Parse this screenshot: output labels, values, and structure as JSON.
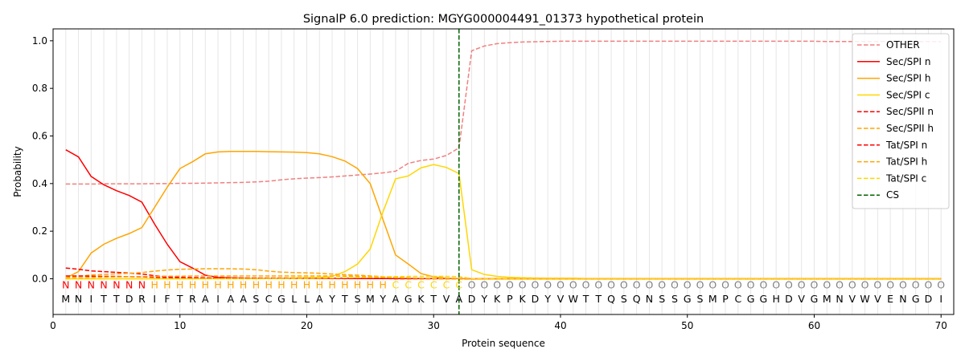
{
  "chart_data": {
    "type": "line",
    "title": "SignalP 6.0 prediction: MGYG000004491_01373 hypothetical protein",
    "xlabel": "Protein sequence",
    "ylabel": "Probability",
    "xlim": [
      0,
      71
    ],
    "ylim": [
      -0.15,
      1.05
    ],
    "x_ticks": [
      0,
      10,
      20,
      30,
      40,
      50,
      60,
      70
    ],
    "y_ticks": [
      0.0,
      0.2,
      0.4,
      0.6,
      0.8,
      1.0
    ],
    "x_tick_labels": [
      "0",
      "10",
      "20",
      "30",
      "40",
      "50",
      "60",
      "70"
    ],
    "y_tick_labels": [
      "0.0",
      "0.2",
      "0.4",
      "0.6",
      "0.8",
      "1.0"
    ],
    "grid": "vertical lines at each residue",
    "legend_position": "top-right",
    "cleavage_site": 32,
    "sequence": [
      "M",
      "N",
      "I",
      "T",
      "T",
      "D",
      "R",
      "I",
      "F",
      "T",
      "R",
      "A",
      "I",
      "A",
      "A",
      "S",
      "C",
      "G",
      "L",
      "L",
      "A",
      "Y",
      "T",
      "S",
      "M",
      "Y",
      "A",
      "G",
      "K",
      "T",
      "V",
      "A",
      "D",
      "Y",
      "K",
      "P",
      "K",
      "D",
      "Y",
      "V",
      "W",
      "T",
      "T",
      "Q",
      "S",
      "Q",
      "N",
      "S",
      "S",
      "G",
      "S",
      "M",
      "P",
      "C",
      "G",
      "G",
      "H",
      "D",
      "V",
      "G",
      "M",
      "N",
      "V",
      "W",
      "V",
      "E",
      "N",
      "G",
      "D",
      "I"
    ],
    "region_labels": [
      "N",
      "N",
      "N",
      "N",
      "N",
      "N",
      "N",
      "H",
      "H",
      "H",
      "H",
      "H",
      "H",
      "H",
      "H",
      "H",
      "H",
      "H",
      "H",
      "H",
      "H",
      "H",
      "H",
      "H",
      "H",
      "H",
      "C",
      "C",
      "C",
      "C",
      "C",
      "C",
      "O",
      "O",
      "O",
      "O",
      "O",
      "O",
      "O",
      "O",
      "O",
      "O",
      "O",
      "O",
      "O",
      "O",
      "O",
      "O",
      "O",
      "O",
      "O",
      "O",
      "O",
      "O",
      "O",
      "O",
      "O",
      "O",
      "O",
      "O",
      "O",
      "O",
      "O",
      "O",
      "O",
      "O",
      "O",
      "O",
      "O",
      "O"
    ],
    "region_colors": {
      "N": "#ff0000",
      "H": "#ffa500",
      "C": "#ffd700",
      "O": "#808080"
    },
    "x": [
      1,
      2,
      3,
      4,
      5,
      6,
      7,
      8,
      9,
      10,
      11,
      12,
      13,
      14,
      15,
      16,
      17,
      18,
      19,
      20,
      21,
      22,
      23,
      24,
      25,
      26,
      27,
      28,
      29,
      30,
      31,
      32,
      33,
      34,
      35,
      36,
      37,
      38,
      39,
      40,
      41,
      42,
      43,
      44,
      45,
      46,
      47,
      48,
      49,
      50,
      51,
      52,
      53,
      54,
      55,
      56,
      57,
      58,
      59,
      60,
      61,
      62,
      63,
      64,
      65,
      66,
      67,
      68,
      69,
      70
    ],
    "series": [
      {
        "name": "OTHER",
        "color": "#f08080",
        "dash": "dashed",
        "values": [
          0.398,
          0.398,
          0.398,
          0.399,
          0.399,
          0.399,
          0.399,
          0.4,
          0.4,
          0.401,
          0.401,
          0.402,
          0.403,
          0.404,
          0.405,
          0.407,
          0.41,
          0.416,
          0.42,
          0.423,
          0.425,
          0.428,
          0.432,
          0.436,
          0.44,
          0.445,
          0.452,
          0.485,
          0.497,
          0.503,
          0.518,
          0.55,
          0.958,
          0.978,
          0.988,
          0.992,
          0.995,
          0.996,
          0.997,
          0.998,
          0.998,
          0.998,
          0.998,
          0.998,
          0.998,
          0.998,
          0.998,
          0.998,
          0.998,
          0.998,
          0.998,
          0.998,
          0.998,
          0.998,
          0.998,
          0.998,
          0.998,
          0.998,
          0.998,
          0.998,
          0.997,
          0.997,
          0.997,
          0.997,
          0.997,
          0.997,
          0.997,
          0.997,
          0.997,
          0.996
        ]
      },
      {
        "name": "Sec/SPI n",
        "color": "#ff0000",
        "dash": "solid",
        "values": [
          0.542,
          0.512,
          0.43,
          0.395,
          0.37,
          0.35,
          0.322,
          0.23,
          0.145,
          0.072,
          0.045,
          0.015,
          0.006,
          0.004,
          0.003,
          0.002,
          0.002,
          0.002,
          0.002,
          0.002,
          0.002,
          0.002,
          0.002,
          0.001,
          0.001,
          0.001,
          0.001,
          0.001,
          0.001,
          0.001,
          0.001,
          0.001,
          0.0,
          0.0,
          0.0,
          0.0,
          0.0,
          0.0,
          0.0,
          0.0,
          0.0,
          0.0,
          0.0,
          0.0,
          0.0,
          0.0,
          0.0,
          0.0,
          0.0,
          0.0,
          0.0,
          0.0,
          0.0,
          0.0,
          0.0,
          0.0,
          0.0,
          0.0,
          0.0,
          0.0,
          0.0,
          0.0,
          0.0,
          0.0,
          0.0,
          0.0,
          0.0,
          0.0,
          0.0,
          0.0
        ]
      },
      {
        "name": "Sec/SPI h",
        "color": "#ffa500",
        "dash": "solid",
        "values": [
          0.003,
          0.03,
          0.108,
          0.145,
          0.17,
          0.19,
          0.215,
          0.3,
          0.385,
          0.463,
          0.492,
          0.525,
          0.533,
          0.535,
          0.535,
          0.535,
          0.534,
          0.533,
          0.532,
          0.53,
          0.525,
          0.513,
          0.495,
          0.463,
          0.4,
          0.25,
          0.1,
          0.062,
          0.022,
          0.008,
          0.003,
          0.001,
          0.0,
          0.0,
          0.0,
          0.0,
          0.0,
          0.0,
          0.0,
          0.0,
          0.0,
          0.0,
          0.0,
          0.0,
          0.0,
          0.0,
          0.0,
          0.0,
          0.0,
          0.0,
          0.0,
          0.0,
          0.0,
          0.0,
          0.0,
          0.0,
          0.0,
          0.0,
          0.0,
          0.0,
          0.0,
          0.0,
          0.0,
          0.0,
          0.0,
          0.0,
          0.0,
          0.0,
          0.0,
          0.0
        ]
      },
      {
        "name": "Sec/SPI c",
        "color": "#ffd700",
        "dash": "solid",
        "values": [
          0.0,
          0.0,
          0.0,
          0.0,
          0.0,
          0.0,
          0.0,
          0.0,
          0.0,
          0.0,
          0.0,
          0.001,
          0.001,
          0.002,
          0.002,
          0.002,
          0.003,
          0.003,
          0.004,
          0.005,
          0.006,
          0.01,
          0.03,
          0.062,
          0.125,
          0.28,
          0.42,
          0.432,
          0.466,
          0.48,
          0.468,
          0.442,
          0.038,
          0.018,
          0.01,
          0.006,
          0.004,
          0.003,
          0.002,
          0.002,
          0.002,
          0.001,
          0.001,
          0.001,
          0.001,
          0.001,
          0.001,
          0.001,
          0.001,
          0.001,
          0.001,
          0.001,
          0.001,
          0.001,
          0.001,
          0.001,
          0.001,
          0.001,
          0.001,
          0.001,
          0.001,
          0.001,
          0.001,
          0.001,
          0.001,
          0.001,
          0.001,
          0.001,
          0.001,
          0.001
        ]
      },
      {
        "name": "Sec/SPII n",
        "color": "#ff0000",
        "dash": "dashed",
        "values": [
          0.045,
          0.04,
          0.033,
          0.03,
          0.027,
          0.024,
          0.02,
          0.013,
          0.008,
          0.006,
          0.005,
          0.004,
          0.003,
          0.003,
          0.003,
          0.003,
          0.003,
          0.003,
          0.002,
          0.002,
          0.002,
          0.002,
          0.002,
          0.002,
          0.002,
          0.002,
          0.001,
          0.001,
          0.001,
          0.001,
          0.001,
          0.001,
          0.0,
          0.0,
          0.0,
          0.0,
          0.0,
          0.0,
          0.0,
          0.0,
          0.0,
          0.0,
          0.0,
          0.0,
          0.0,
          0.0,
          0.0,
          0.0,
          0.0,
          0.0,
          0.0,
          0.0,
          0.0,
          0.0,
          0.0,
          0.0,
          0.0,
          0.0,
          0.0,
          0.0,
          0.0,
          0.0,
          0.0,
          0.0,
          0.0,
          0.0,
          0.0,
          0.0,
          0.0,
          0.0
        ]
      },
      {
        "name": "Sec/SPII h",
        "color": "#ffa500",
        "dash": "dashed",
        "values": [
          0.005,
          0.01,
          0.016,
          0.018,
          0.021,
          0.023,
          0.026,
          0.032,
          0.037,
          0.04,
          0.041,
          0.042,
          0.042,
          0.042,
          0.041,
          0.038,
          0.032,
          0.028,
          0.026,
          0.025,
          0.023,
          0.02,
          0.017,
          0.015,
          0.012,
          0.009,
          0.006,
          0.004,
          0.002,
          0.001,
          0.001,
          0.0,
          0.0,
          0.0,
          0.0,
          0.0,
          0.0,
          0.0,
          0.0,
          0.0,
          0.0,
          0.0,
          0.0,
          0.0,
          0.0,
          0.0,
          0.0,
          0.0,
          0.0,
          0.0,
          0.0,
          0.0,
          0.0,
          0.0,
          0.0,
          0.0,
          0.0,
          0.0,
          0.0,
          0.0,
          0.0,
          0.0,
          0.0,
          0.0,
          0.0,
          0.0,
          0.0,
          0.0,
          0.0,
          0.0
        ]
      },
      {
        "name": "Tat/SPI n",
        "color": "#ff0000",
        "dash": "dashed",
        "values": [
          0.012,
          0.012,
          0.011,
          0.01,
          0.01,
          0.009,
          0.008,
          0.006,
          0.004,
          0.003,
          0.002,
          0.002,
          0.001,
          0.001,
          0.001,
          0.001,
          0.001,
          0.001,
          0.001,
          0.001,
          0.001,
          0.001,
          0.001,
          0.001,
          0.001,
          0.001,
          0.0,
          0.0,
          0.0,
          0.0,
          0.0,
          0.0,
          0.0,
          0.0,
          0.0,
          0.0,
          0.0,
          0.0,
          0.0,
          0.0,
          0.0,
          0.0,
          0.0,
          0.0,
          0.0,
          0.0,
          0.0,
          0.0,
          0.0,
          0.0,
          0.0,
          0.0,
          0.0,
          0.0,
          0.0,
          0.0,
          0.0,
          0.0,
          0.0,
          0.0,
          0.0,
          0.0,
          0.0,
          0.0,
          0.0,
          0.0,
          0.0,
          0.0,
          0.0,
          0.0
        ]
      },
      {
        "name": "Tat/SPI h",
        "color": "#ffa500",
        "dash": "dashed",
        "values": [
          0.002,
          0.004,
          0.006,
          0.007,
          0.008,
          0.009,
          0.009,
          0.01,
          0.011,
          0.011,
          0.012,
          0.012,
          0.012,
          0.012,
          0.012,
          0.012,
          0.012,
          0.012,
          0.012,
          0.012,
          0.012,
          0.012,
          0.011,
          0.01,
          0.008,
          0.006,
          0.004,
          0.003,
          0.002,
          0.001,
          0.001,
          0.0,
          0.0,
          0.0,
          0.0,
          0.0,
          0.0,
          0.0,
          0.0,
          0.0,
          0.0,
          0.0,
          0.0,
          0.0,
          0.0,
          0.0,
          0.0,
          0.0,
          0.0,
          0.0,
          0.0,
          0.0,
          0.0,
          0.0,
          0.0,
          0.0,
          0.0,
          0.0,
          0.0,
          0.0,
          0.0,
          0.0,
          0.0,
          0.0,
          0.0,
          0.0,
          0.0,
          0.0,
          0.0,
          0.0
        ]
      },
      {
        "name": "Tat/SPI c",
        "color": "#ffd700",
        "dash": "dashed",
        "values": [
          0.0,
          0.0,
          0.0,
          0.0,
          0.0,
          0.0,
          0.0,
          0.0,
          0.0,
          0.0,
          0.0,
          0.0,
          0.0,
          0.0,
          0.0,
          0.0,
          0.001,
          0.001,
          0.001,
          0.001,
          0.002,
          0.003,
          0.004,
          0.005,
          0.006,
          0.008,
          0.009,
          0.01,
          0.01,
          0.01,
          0.01,
          0.009,
          0.001,
          0.0,
          0.0,
          0.0,
          0.0,
          0.0,
          0.0,
          0.0,
          0.0,
          0.0,
          0.0,
          0.0,
          0.0,
          0.0,
          0.0,
          0.0,
          0.0,
          0.0,
          0.0,
          0.0,
          0.0,
          0.0,
          0.0,
          0.0,
          0.0,
          0.0,
          0.0,
          0.0,
          0.0,
          0.0,
          0.0,
          0.0,
          0.0,
          0.0,
          0.0,
          0.0,
          0.0,
          0.0
        ]
      }
    ],
    "legend": [
      {
        "name": "OTHER",
        "color": "#f08080",
        "dash": "dashed"
      },
      {
        "name": "Sec/SPI n",
        "color": "#ff0000",
        "dash": "solid"
      },
      {
        "name": "Sec/SPI h",
        "color": "#ffa500",
        "dash": "solid"
      },
      {
        "name": "Sec/SPI c",
        "color": "#ffd700",
        "dash": "solid"
      },
      {
        "name": "Sec/SPII n",
        "color": "#ff0000",
        "dash": "dashed"
      },
      {
        "name": "Sec/SPII h",
        "color": "#ffa500",
        "dash": "dashed"
      },
      {
        "name": "Tat/SPI n",
        "color": "#ff0000",
        "dash": "dashed"
      },
      {
        "name": "Tat/SPI h",
        "color": "#ffa500",
        "dash": "dashed"
      },
      {
        "name": "Tat/SPI c",
        "color": "#ffd700",
        "dash": "dashed"
      },
      {
        "name": "CS",
        "color": "#006400",
        "dash": "dashed"
      }
    ]
  }
}
